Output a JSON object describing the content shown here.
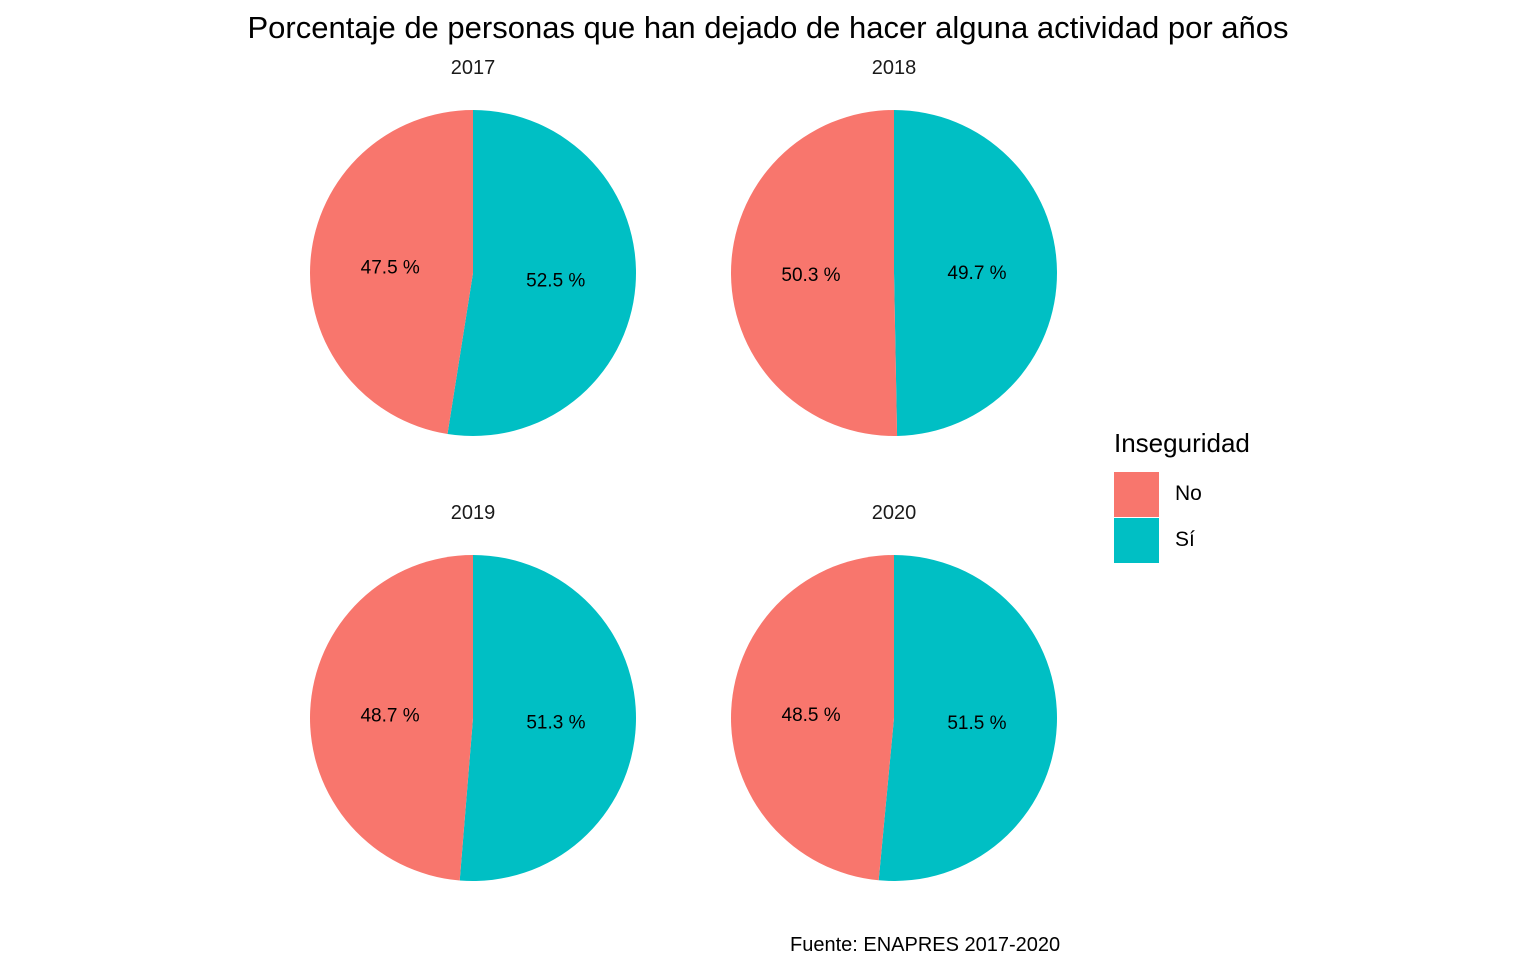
{
  "chart_data": {
    "type": "pie",
    "title": "Porcentaje de personas que han dejado de hacer alguna actividad por años",
    "caption": "Fuente: ENAPRES 2017-2020",
    "legend": {
      "title": "Inseguridad",
      "position": "right",
      "items": [
        {
          "label": "No",
          "color": "#F8766D"
        },
        {
          "label": "Sí",
          "color": "#00BFC4"
        }
      ]
    },
    "facets": [
      {
        "year": "2017",
        "slices": [
          {
            "category": "No",
            "value": 47.5,
            "label": "47.5 %"
          },
          {
            "category": "Sí",
            "value": 52.5,
            "label": "52.5 %"
          }
        ]
      },
      {
        "year": "2018",
        "slices": [
          {
            "category": "No",
            "value": 50.3,
            "label": "50.3 %"
          },
          {
            "category": "Sí",
            "value": 49.7,
            "label": "49.7 %"
          }
        ]
      },
      {
        "year": "2019",
        "slices": [
          {
            "category": "No",
            "value": 48.7,
            "label": "48.7 %"
          },
          {
            "category": "Sí",
            "value": 51.3,
            "label": "51.3 %"
          }
        ]
      },
      {
        "year": "2020",
        "slices": [
          {
            "category": "No",
            "value": 48.5,
            "label": "48.5 %"
          },
          {
            "category": "Sí",
            "value": 51.5,
            "label": "51.5 %"
          }
        ]
      }
    ]
  }
}
